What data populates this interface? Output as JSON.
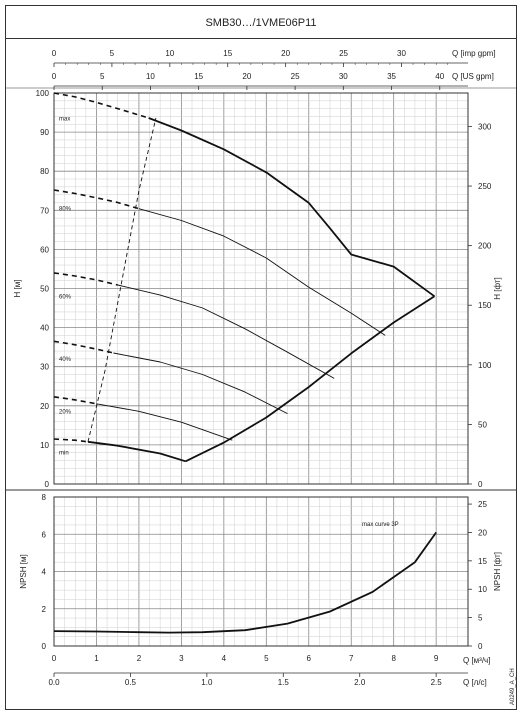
{
  "header": {
    "title": "SMB30…/1VME06P11"
  },
  "side_code": "A0249_A_CH",
  "chart_data": [
    {
      "type": "line",
      "title": "SMB30…/1VME06P11",
      "ylabel": "H [м]",
      "ylabel_right": "H [фт]",
      "xlabel_top_imp": "Q [imp gpm]",
      "xlabel_top_us": "Q [US gpm]",
      "xlim": [
        0,
        9.75
      ],
      "ylim": [
        0,
        100
      ],
      "y_ticks": [
        "0",
        "10",
        "20",
        "30",
        "40",
        "50",
        "60",
        "70",
        "80",
        "90",
        "100"
      ],
      "y_right_ticks": [
        "0",
        "50",
        "100",
        "150",
        "200",
        "250",
        "300"
      ],
      "x_top_imp_ticks": [
        "0",
        "5",
        "10",
        "15",
        "20",
        "25",
        "30"
      ],
      "x_top_us_ticks": [
        "0",
        "5",
        "10",
        "15",
        "20",
        "25",
        "30",
        "35",
        "40"
      ],
      "grid": true,
      "series": [
        {
          "name": "max",
          "x": [
            0,
            0.5,
            1,
            1.5,
            2.23
          ],
          "y": [
            100,
            99,
            97.6,
            96,
            93.6
          ],
          "style": "dashed",
          "label_y": 93.5
        },
        {
          "name": "max",
          "x": [
            2.23,
            3,
            4,
            5,
            6,
            6.5,
            7,
            8,
            8.96
          ],
          "y": [
            93.6,
            90.4,
            85.6,
            79.7,
            71.9,
            65.4,
            58.7,
            55.6,
            48
          ],
          "style": "solid-bold"
        },
        {
          "name": "80%",
          "x": [
            0,
            0.5,
            1,
            1.5,
            2
          ],
          "y": [
            75.2,
            74.3,
            73.2,
            72,
            70.4
          ],
          "style": "dashed",
          "label_y": 70.5
        },
        {
          "name": "80%",
          "x": [
            2,
            3,
            4,
            5,
            6,
            7,
            7.8
          ],
          "y": [
            70.4,
            67.4,
            63.4,
            57.8,
            50.3,
            43.7,
            38
          ],
          "style": "solid-thin"
        },
        {
          "name": "60%",
          "x": [
            0,
            0.5,
            1,
            1.5
          ],
          "y": [
            54,
            53.2,
            52.2,
            50.9
          ],
          "style": "dashed",
          "label_y": 48
        },
        {
          "name": "60%",
          "x": [
            1.5,
            2.5,
            3.5,
            4.5,
            5.5,
            6.6
          ],
          "y": [
            50.9,
            48.3,
            45,
            39.7,
            33.7,
            27
          ],
          "style": "solid-thin"
        },
        {
          "name": "40%",
          "x": [
            0,
            0.5,
            1,
            1.4
          ],
          "y": [
            36.5,
            35.6,
            34.5,
            33.5
          ],
          "style": "dashed",
          "label_y": 32
        },
        {
          "name": "40%",
          "x": [
            1.4,
            2.5,
            3.5,
            4.5,
            5.5
          ],
          "y": [
            33.5,
            31.2,
            28,
            23.5,
            18
          ],
          "style": "solid-thin"
        },
        {
          "name": "20%",
          "x": [
            0,
            0.5,
            1
          ],
          "y": [
            22.3,
            21.5,
            20.5
          ],
          "style": "dashed",
          "label_y": 18.5
        },
        {
          "name": "20%",
          "x": [
            1,
            2,
            3,
            4.2
          ],
          "y": [
            20.5,
            18.6,
            15.8,
            11.2
          ],
          "style": "solid-thin"
        },
        {
          "name": "min",
          "x": [
            0,
            0.5,
            0.8
          ],
          "y": [
            11.5,
            11.2,
            10.8
          ],
          "style": "dashed",
          "label_y": 8
        },
        {
          "name": "min",
          "x": [
            0.8,
            1.5,
            2.5,
            3.1
          ],
          "y": [
            10.8,
            9.8,
            7.8,
            5.8
          ],
          "style": "solid-bold"
        },
        {
          "name": "",
          "x": [
            3.1,
            4,
            5,
            6,
            7,
            8,
            8.96
          ],
          "y": [
            5.8,
            10.6,
            17,
            24.8,
            33.4,
            41.3,
            48
          ],
          "style": "solid-bold"
        },
        {
          "name": "",
          "x": [
            0.8,
            1.2,
            1.6,
            2,
            2.4
          ],
          "y": [
            10.8,
            29,
            52,
            75,
            93.6
          ],
          "style": "dashed-thin"
        }
      ]
    },
    {
      "type": "line",
      "ylabel": "NPSH [м]",
      "ylabel_right": "NPSH [фт]",
      "xlabel_bottom_m3h": "Q [м³/ч]",
      "xlabel_bottom_ls": "Q [л/с]",
      "xlim": [
        0,
        9.75
      ],
      "ylim": [
        0,
        8
      ],
      "y_ticks": [
        "0",
        "2",
        "4",
        "6",
        "8"
      ],
      "y_right_ticks": [
        "0",
        "5",
        "10",
        "15",
        "20",
        "25"
      ],
      "x_bottom_m3h_ticks": [
        "0",
        "1",
        "2",
        "3",
        "4",
        "5",
        "6",
        "7",
        "8",
        "9"
      ],
      "x_bottom_ls_ticks": [
        "0.0",
        "0.5",
        "1.0",
        "1.5",
        "2.0",
        "2.5"
      ],
      "annotation": "max curve 3P",
      "grid": true,
      "series": [
        {
          "name": "",
          "x": [
            0,
            1,
            2,
            2.7,
            3.5,
            4.5,
            5.5,
            6.5,
            7.5,
            8.5,
            9
          ],
          "y": [
            0.8,
            0.78,
            0.74,
            0.72,
            0.74,
            0.85,
            1.2,
            1.85,
            2.9,
            4.5,
            6.1
          ]
        }
      ]
    }
  ]
}
